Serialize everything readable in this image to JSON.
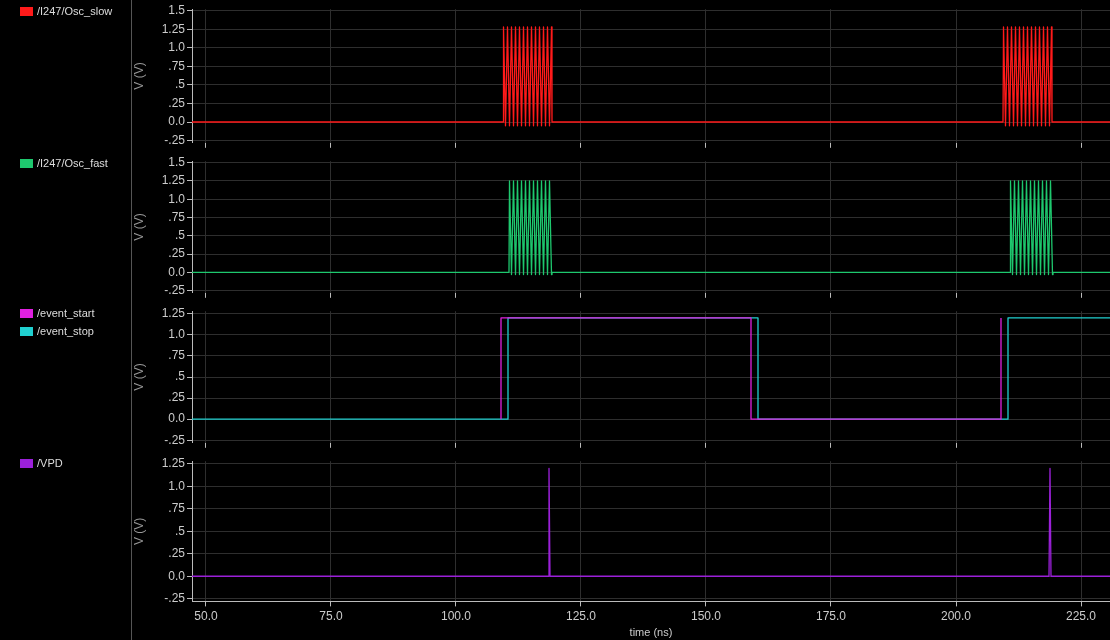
{
  "chart_data": [
    {
      "type": "line",
      "ylabel": "V (V)",
      "xlim": [
        47.2,
        230.8
      ],
      "ylim": [
        -0.28,
        1.52
      ],
      "xticks": [
        50,
        75,
        100,
        125,
        150,
        175,
        200,
        225
      ],
      "yticks": [
        {
          "value": 1.5,
          "label": "1.5"
        },
        {
          "value": 1.25,
          "label": "1.25"
        },
        {
          "value": 1,
          "label": "1.0"
        },
        {
          "value": 0.75,
          "label": ".75"
        },
        {
          "value": 0.5,
          "label": ".5"
        },
        {
          "value": 0.25,
          "label": ".25"
        },
        {
          "value": 0,
          "label": "0.0"
        },
        {
          "value": -0.25,
          "label": "-.25"
        }
      ],
      "tick_labels": "y",
      "grid": true,
      "legend": "left",
      "marker": "none",
      "series": [
        {
          "name": "/I247/Osc_slow",
          "color": "#ff1a1a",
          "x": [
            47.2,
            109.4,
            109.5,
            109.9,
            110.3,
            110.7,
            111.1,
            111.5,
            111.9,
            112.3,
            112.7,
            113.1,
            113.5,
            113.9,
            114.3,
            114.7,
            115.1,
            115.5,
            115.9,
            116.3,
            116.7,
            117.1,
            117.5,
            117.9,
            118.3,
            118.7,
            119.1,
            119.2,
            209.4,
            209.5,
            209.9,
            210.3,
            210.7,
            211.1,
            211.5,
            211.9,
            212.3,
            212.7,
            213.1,
            213.5,
            213.9,
            214.3,
            214.7,
            215.1,
            215.5,
            215.9,
            216.3,
            216.7,
            217.1,
            217.5,
            217.9,
            218.3,
            218.7,
            219.1,
            219.2,
            230.8
          ],
          "values": [
            0,
            0,
            1.28,
            -0.05,
            1.28,
            -0.05,
            1.28,
            -0.05,
            1.28,
            -0.05,
            1.28,
            -0.05,
            1.28,
            -0.05,
            1.28,
            -0.05,
            1.28,
            -0.05,
            1.28,
            -0.05,
            1.28,
            -0.05,
            1.28,
            -0.05,
            1.28,
            -0.05,
            1.28,
            0,
            0,
            1.28,
            -0.05,
            1.28,
            -0.05,
            1.28,
            -0.05,
            1.28,
            -0.05,
            1.28,
            -0.05,
            1.28,
            -0.05,
            1.28,
            -0.05,
            1.28,
            -0.05,
            1.28,
            -0.05,
            1.28,
            -0.05,
            1.28,
            -0.05,
            1.28,
            -0.05,
            1.28,
            0,
            0
          ]
        }
      ]
    },
    {
      "type": "line",
      "ylabel": "V (V)",
      "xlim": [
        47.2,
        230.8
      ],
      "ylim": [
        -0.28,
        1.52
      ],
      "xticks": [
        50,
        75,
        100,
        125,
        150,
        175,
        200,
        225
      ],
      "yticks": [
        {
          "value": 1.5,
          "label": "1.5"
        },
        {
          "value": 1.25,
          "label": "1.25"
        },
        {
          "value": 1,
          "label": "1.0"
        },
        {
          "value": 0.75,
          "label": ".75"
        },
        {
          "value": 0.5,
          "label": ".5"
        },
        {
          "value": 0.25,
          "label": ".25"
        },
        {
          "value": 0,
          "label": "0.0"
        },
        {
          "value": -0.25,
          "label": "-.25"
        }
      ],
      "tick_labels": "y",
      "grid": true,
      "legend": "left",
      "marker": "none",
      "series": [
        {
          "name": "/I247/Osc_fast",
          "color": "#1ec86e",
          "x": [
            47.2,
            110.6,
            110.7,
            111.1,
            111.5,
            111.9,
            112.3,
            112.7,
            113.1,
            113.5,
            113.9,
            114.3,
            114.7,
            115.1,
            115.5,
            115.9,
            116.3,
            116.7,
            117.1,
            117.5,
            117.9,
            118.3,
            118.7,
            119.1,
            119.2,
            210.8,
            210.9,
            211.3,
            211.7,
            212.1,
            212.5,
            212.9,
            213.3,
            213.7,
            214.1,
            214.5,
            214.9,
            215.3,
            215.7,
            216.1,
            216.5,
            216.9,
            217.3,
            217.7,
            218.1,
            218.5,
            218.9,
            219.3,
            219.4,
            230.8
          ],
          "values": [
            0,
            0,
            1.25,
            -0.03,
            1.25,
            -0.03,
            1.25,
            -0.03,
            1.25,
            -0.03,
            1.25,
            -0.03,
            1.25,
            -0.03,
            1.25,
            -0.03,
            1.25,
            -0.03,
            1.25,
            -0.03,
            1.25,
            -0.03,
            1.25,
            -0.03,
            0,
            0,
            1.25,
            -0.03,
            1.25,
            -0.03,
            1.25,
            -0.03,
            1.25,
            -0.03,
            1.25,
            -0.03,
            1.25,
            -0.03,
            1.25,
            -0.03,
            1.25,
            -0.03,
            1.25,
            -0.03,
            1.25,
            -0.03,
            1.25,
            -0.03,
            0,
            0
          ]
        }
      ]
    },
    {
      "type": "line",
      "ylabel": "V (V)",
      "xlim": [
        47.2,
        230.8
      ],
      "ylim": [
        -0.28,
        1.28
      ],
      "xticks": [
        50,
        75,
        100,
        125,
        150,
        175,
        200,
        225
      ],
      "yticks": [
        {
          "value": 1.25,
          "label": "1.25"
        },
        {
          "value": 1,
          "label": "1.0"
        },
        {
          "value": 0.75,
          "label": ".75"
        },
        {
          "value": 0.5,
          "label": ".5"
        },
        {
          "value": 0.25,
          "label": ".25"
        },
        {
          "value": 0,
          "label": "0.0"
        },
        {
          "value": -0.25,
          "label": "-.25"
        }
      ],
      "tick_labels": "y",
      "grid": true,
      "legend": "left",
      "marker": "none",
      "series": [
        {
          "name": "/event_start",
          "color": "#e020e0",
          "x": [
            109,
            109,
            159,
            159,
            209,
            209
          ],
          "values": [
            0,
            1.2,
            1.2,
            0,
            0,
            1.2
          ]
        },
        {
          "name": "/event_stop",
          "color": "#20d0d0",
          "x": [
            47.2,
            110.4,
            110.4,
            160.4,
            160.4,
            210.4,
            210.4,
            230.8
          ],
          "values": [
            0,
            0,
            1.2,
            1.2,
            0,
            0,
            1.2,
            1.2
          ]
        }
      ]
    },
    {
      "type": "line",
      "ylabel": "V (V)",
      "xlabel": "time (ns)",
      "xlim": [
        47.2,
        230.8
      ],
      "ylim": [
        -0.28,
        1.28
      ],
      "xticks": [
        {
          "value": 50,
          "label": "50.0"
        },
        {
          "value": 75,
          "label": "75.0"
        },
        {
          "value": 100,
          "label": "100.0"
        },
        {
          "value": 125,
          "label": "125.0"
        },
        {
          "value": 150,
          "label": "150.0"
        },
        {
          "value": 175,
          "label": "175.0"
        },
        {
          "value": 200,
          "label": "200.0"
        },
        {
          "value": 225,
          "label": "225.0"
        }
      ],
      "yticks": [
        {
          "value": 1.25,
          "label": "1.25"
        },
        {
          "value": 1,
          "label": "1.0"
        },
        {
          "value": 0.75,
          "label": ".75"
        },
        {
          "value": 0.5,
          "label": ".5"
        },
        {
          "value": 0.25,
          "label": ".25"
        },
        {
          "value": 0,
          "label": "0.0"
        },
        {
          "value": -0.25,
          "label": "-.25"
        }
      ],
      "grid": true,
      "legend": "left",
      "marker": "none",
      "series": [
        {
          "name": "/VPD",
          "color": "#9b20d9",
          "x": [
            47.2,
            118.4,
            118.6,
            118.8,
            218.6,
            218.8,
            219.0,
            230.8
          ],
          "values": [
            0,
            0,
            1.2,
            0,
            0,
            1.2,
            0,
            0
          ]
        }
      ]
    }
  ]
}
